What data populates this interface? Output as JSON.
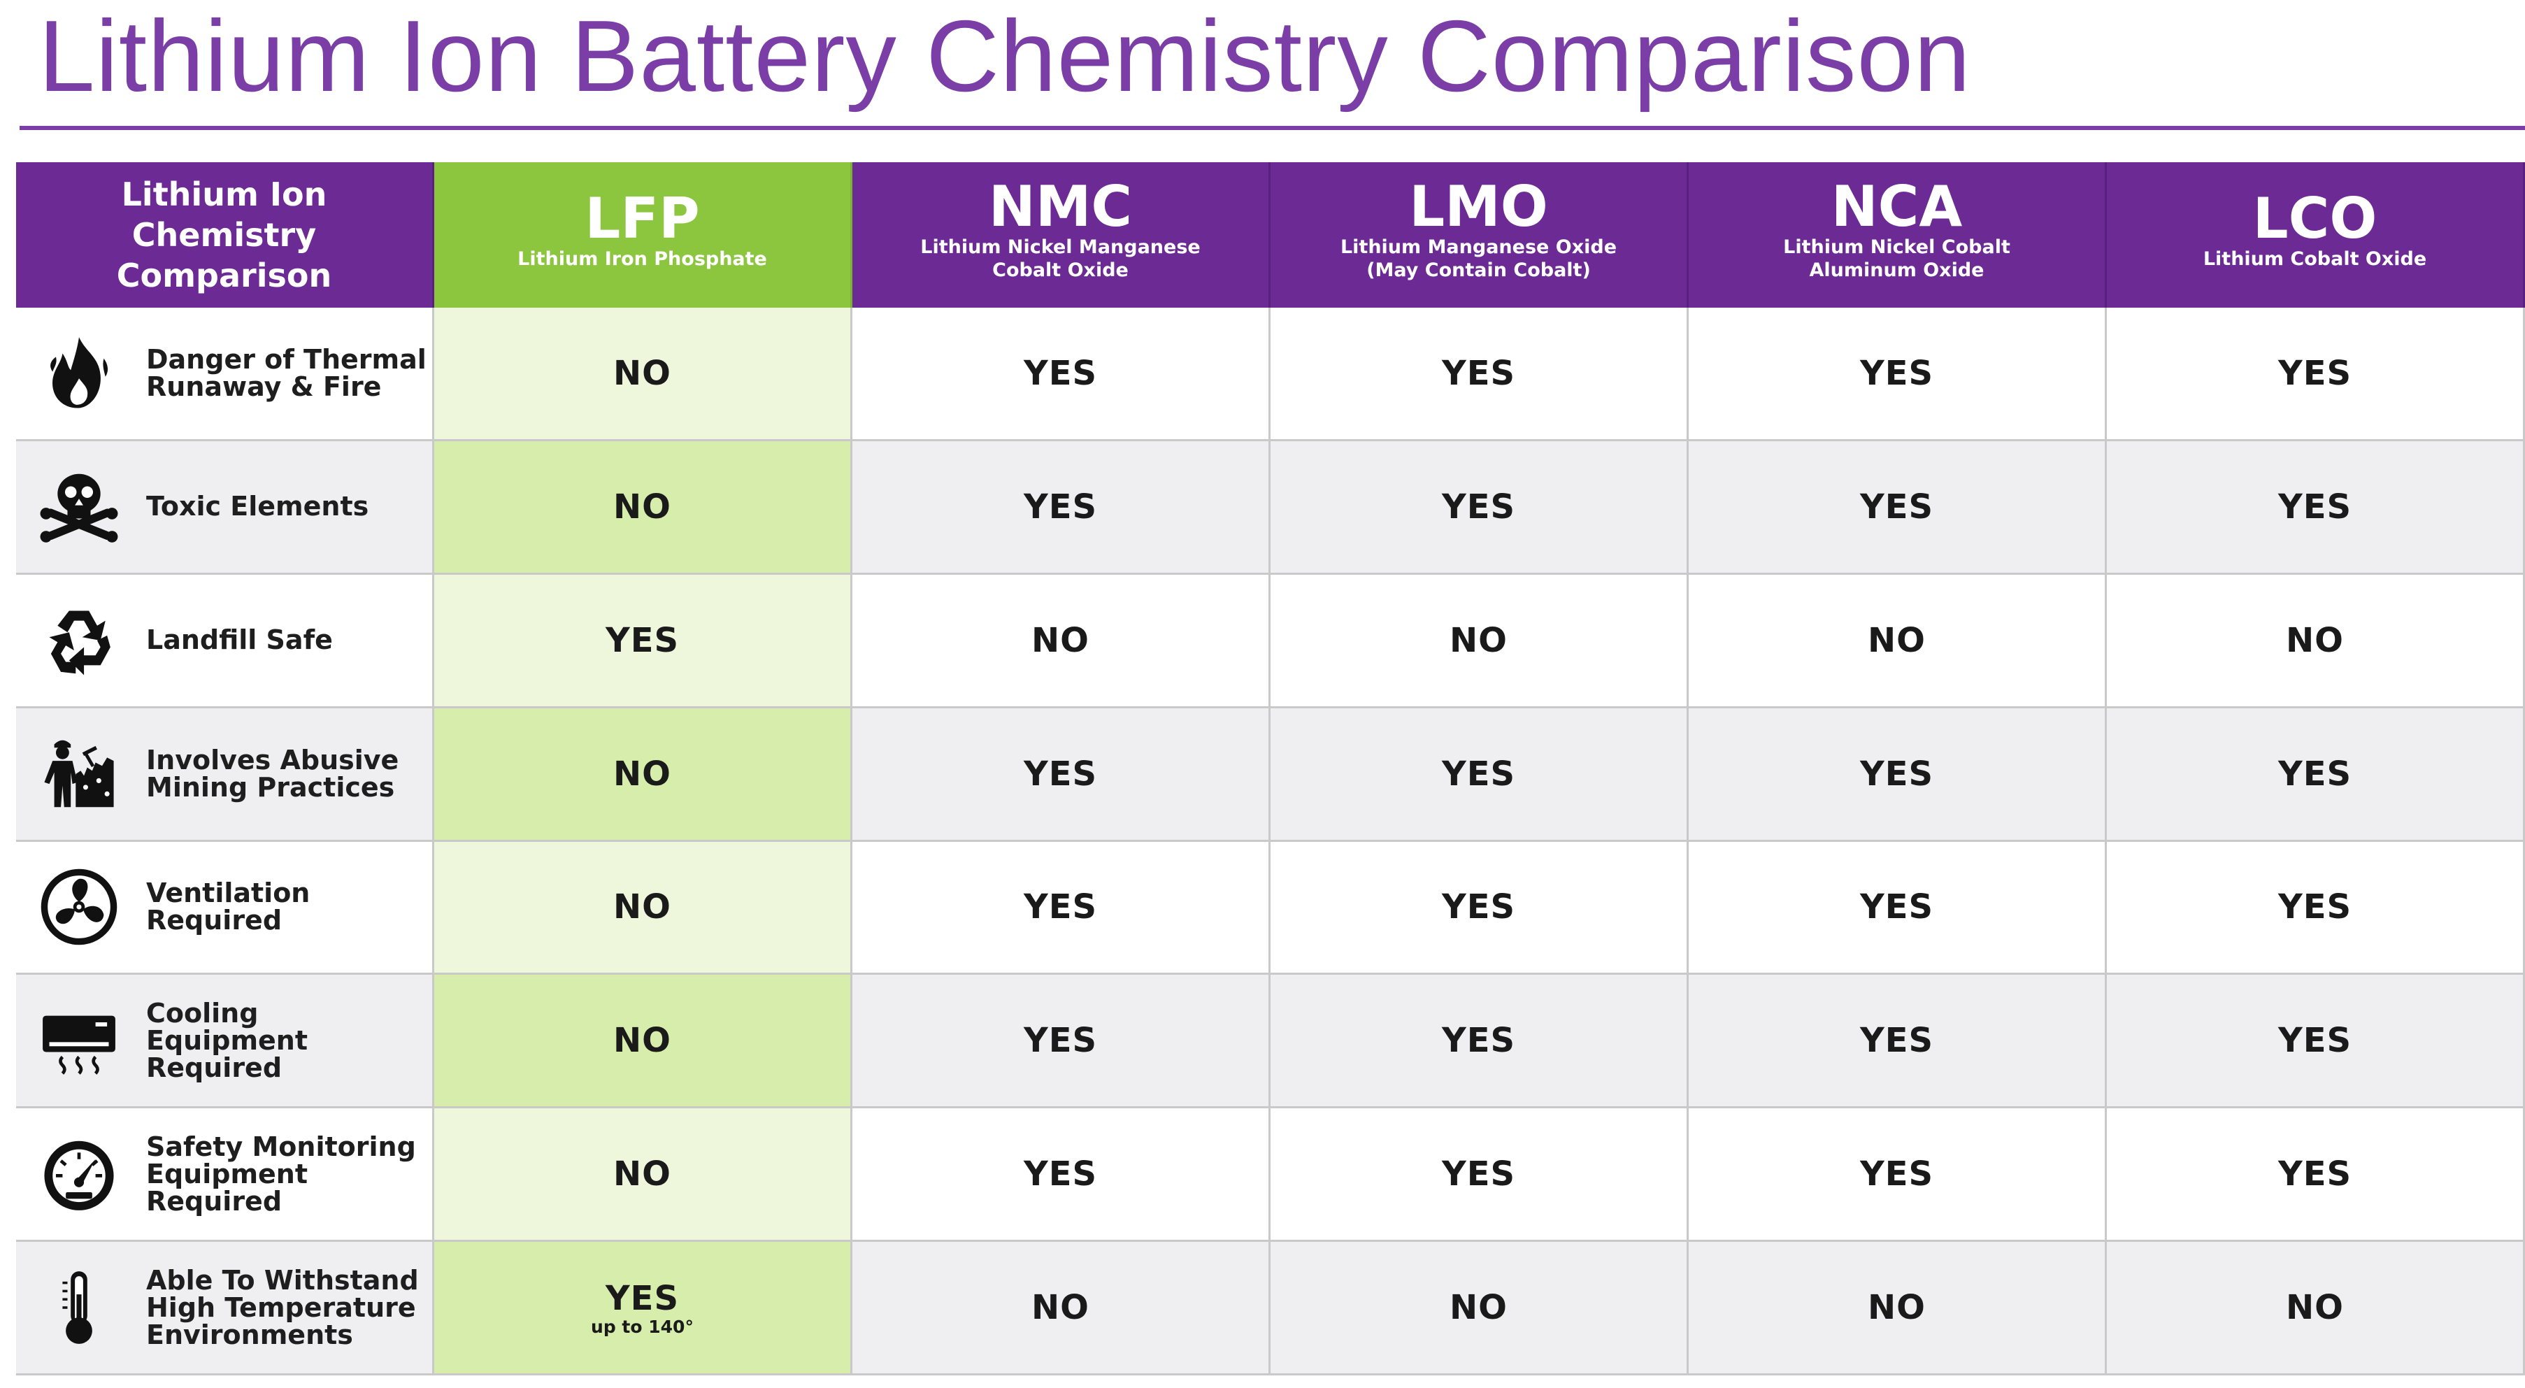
{
  "title": "Lithium Ion Battery Chemistry Comparison",
  "table": {
    "corner_label": "Lithium Ion\nChemistry\nComparison",
    "columns": [
      {
        "abbr": "LFP",
        "name": "Lithium Iron Phosphate"
      },
      {
        "abbr": "NMC",
        "name": "Lithium Nickel Manganese\nCobalt Oxide"
      },
      {
        "abbr": "LMO",
        "name": "Lithium Manganese Oxide\n(May Contain Cobalt)"
      },
      {
        "abbr": "NCA",
        "name": "Lithium Nickel Cobalt\nAluminum Oxide"
      },
      {
        "abbr": "LCO",
        "name": "Lithium Cobalt Oxide"
      }
    ],
    "rows": [
      {
        "icon": "fire-icon",
        "label": "Danger of Thermal\nRunaway & Fire",
        "values": [
          "NO",
          "YES",
          "YES",
          "YES",
          "YES"
        ]
      },
      {
        "icon": "skull-crossbones-icon",
        "label": "Toxic Elements",
        "values": [
          "NO",
          "YES",
          "YES",
          "YES",
          "YES"
        ]
      },
      {
        "icon": "recycle-icon",
        "label": "Landfill Safe",
        "values": [
          "YES",
          "NO",
          "NO",
          "NO",
          "NO"
        ]
      },
      {
        "icon": "mining-worker-icon",
        "label": "Involves Abusive\nMining Practices",
        "values": [
          "NO",
          "YES",
          "YES",
          "YES",
          "YES"
        ]
      },
      {
        "icon": "fan-icon",
        "label": "Ventilation\nRequired",
        "values": [
          "NO",
          "YES",
          "YES",
          "YES",
          "YES"
        ]
      },
      {
        "icon": "air-conditioner-icon",
        "label": "Cooling\nEquipment\nRequired",
        "values": [
          "NO",
          "YES",
          "YES",
          "YES",
          "YES"
        ]
      },
      {
        "icon": "gauge-icon",
        "label": "Safety Monitoring\nEquipment\nRequired",
        "values": [
          "NO",
          "YES",
          "YES",
          "YES",
          "YES"
        ]
      },
      {
        "icon": "thermometer-icon",
        "label": "Able To Withstand\nHigh Temperature\nEnvironments",
        "values": [
          "YES",
          "NO",
          "NO",
          "NO",
          "NO"
        ],
        "lfp_note": "up to 140°"
      }
    ]
  },
  "colors": {
    "title": "#7a3ea6",
    "header_purple": "#6c2a94",
    "header_green": "#8cc63f",
    "lfp_light": "#eef6dc",
    "lfp_dark": "#d7edab",
    "row_gray": "#efeef0"
  }
}
